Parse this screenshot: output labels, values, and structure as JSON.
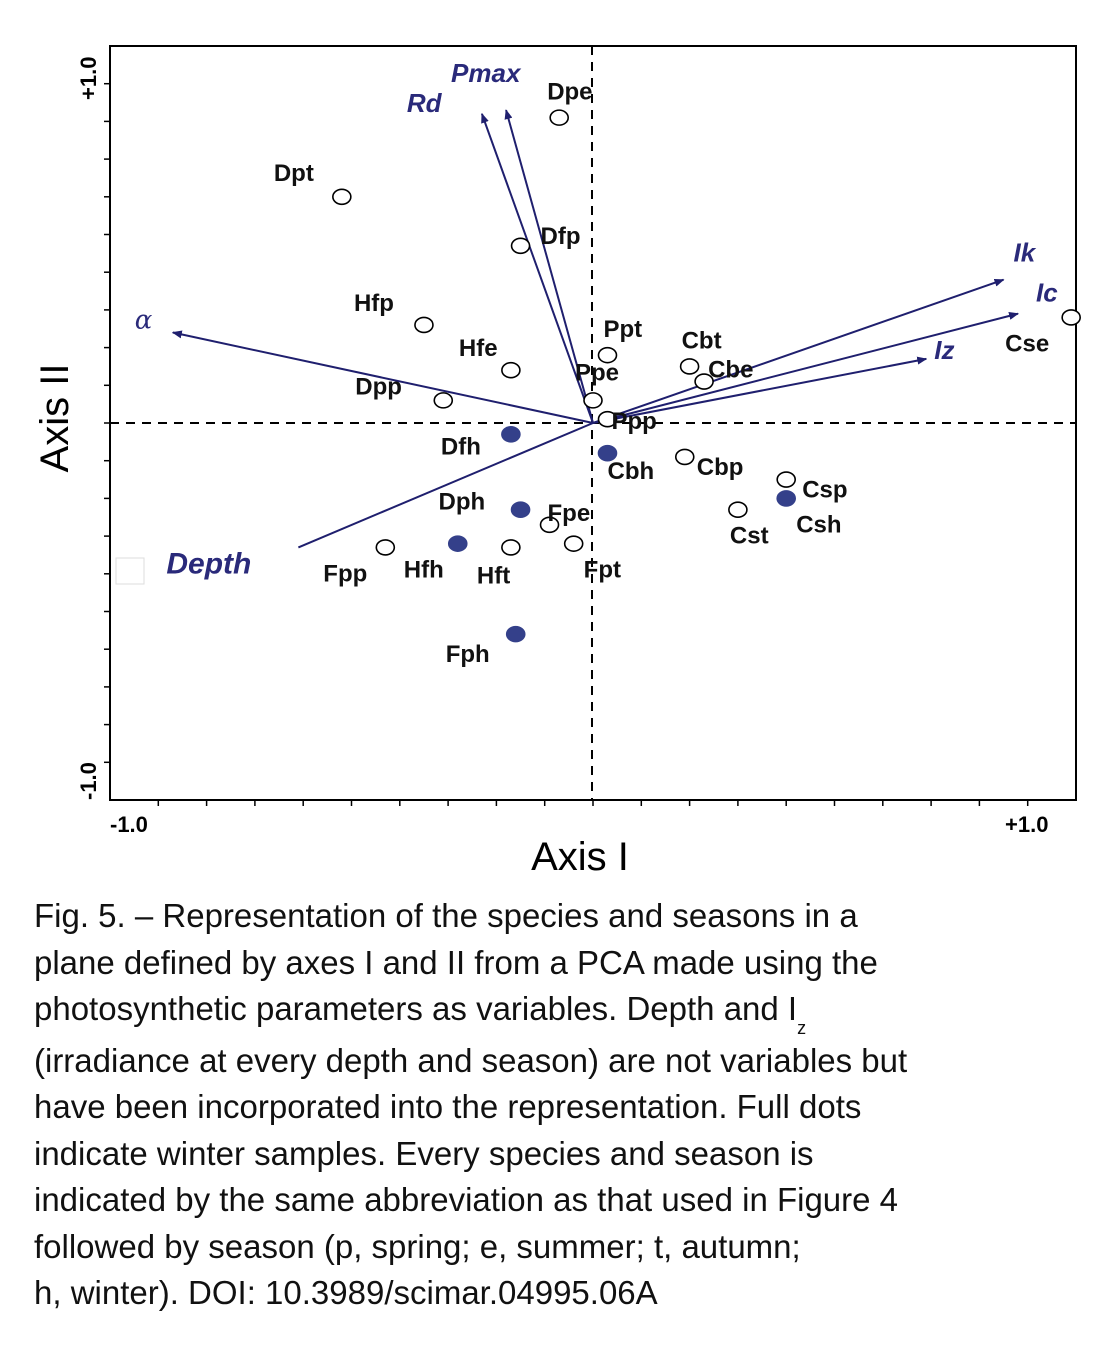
{
  "chart_data": {
    "type": "scatter",
    "xlabel": "Axis I",
    "ylabel": "Axis II",
    "xlim": [
      -1.0,
      1.0
    ],
    "ylim": [
      -1.0,
      1.0
    ],
    "tick_labels": {
      "x_min": "-1.0",
      "x_max": "+1.0",
      "y_min": "-1.0",
      "y_max": "+1.0"
    },
    "grid": false,
    "reference_lines": "dashed lines at x=0 and y=0",
    "points": [
      {
        "label": "Dpe",
        "x": -0.07,
        "y": 0.81,
        "winter": false
      },
      {
        "label": "Dpt",
        "x": -0.52,
        "y": 0.6,
        "winter": false
      },
      {
        "label": "Dfp",
        "x": -0.15,
        "y": 0.47,
        "winter": false
      },
      {
        "label": "Hfp",
        "x": -0.35,
        "y": 0.26,
        "winter": false
      },
      {
        "label": "Hfe",
        "x": -0.17,
        "y": 0.14,
        "winter": false
      },
      {
        "label": "Dpp",
        "x": -0.31,
        "y": 0.06,
        "winter": false
      },
      {
        "label": "Ppt",
        "x": 0.03,
        "y": 0.18,
        "winter": false
      },
      {
        "label": "Cbt",
        "x": 0.2,
        "y": 0.15,
        "winter": false
      },
      {
        "label": "Cbe",
        "x": 0.23,
        "y": 0.11,
        "winter": false
      },
      {
        "label": "Ppe",
        "x": 0.0,
        "y": 0.06,
        "winter": false
      },
      {
        "label": "Ppp",
        "x": 0.03,
        "y": 0.01,
        "winter": false
      },
      {
        "label": "Cse",
        "x": 0.99,
        "y": 0.28,
        "winter": false
      },
      {
        "label": "Dfh",
        "x": -0.17,
        "y": -0.03,
        "winter": true
      },
      {
        "label": "Cbh",
        "x": 0.03,
        "y": -0.08,
        "winter": true
      },
      {
        "label": "Cbp",
        "x": 0.19,
        "y": -0.09,
        "winter": false
      },
      {
        "label": "Csp",
        "x": 0.4,
        "y": -0.15,
        "winter": false
      },
      {
        "label": "Csh",
        "x": 0.4,
        "y": -0.2,
        "winter": true
      },
      {
        "label": "Cst",
        "x": 0.3,
        "y": -0.23,
        "winter": false
      },
      {
        "label": "Dph",
        "x": -0.15,
        "y": -0.23,
        "winter": true
      },
      {
        "label": "Fpe",
        "x": -0.09,
        "y": -0.27,
        "winter": false
      },
      {
        "label": "Fpp",
        "x": -0.43,
        "y": -0.33,
        "winter": false
      },
      {
        "label": "Hfh",
        "x": -0.28,
        "y": -0.32,
        "winter": true
      },
      {
        "label": "Hft",
        "x": -0.17,
        "y": -0.33,
        "winter": false
      },
      {
        "label": "Fpt",
        "x": -0.04,
        "y": -0.32,
        "winter": false
      },
      {
        "label": "Fph",
        "x": -0.16,
        "y": -0.56,
        "winter": true
      }
    ],
    "vectors": [
      {
        "label": "Pmax",
        "x": -0.18,
        "y": 0.83
      },
      {
        "label": "Rd",
        "x": -0.23,
        "y": 0.82
      },
      {
        "label": "Ik",
        "x": 0.85,
        "y": 0.38
      },
      {
        "label": "Ic",
        "x": 0.88,
        "y": 0.29
      },
      {
        "label": "Iz",
        "x": 0.69,
        "y": 0.17
      },
      {
        "label": "α",
        "x": -0.87,
        "y": 0.24
      },
      {
        "label": "Depth",
        "x": -0.61,
        "y": -0.33
      }
    ],
    "colors": {
      "vector": "#1f1f6e",
      "label": "#2a2a7a",
      "winter_fill": "#34408a"
    }
  },
  "caption": {
    "lines": [
      "Fig. 5. – Representation of the species and seasons in a",
      "plane defined by axes I and II from a PCA made using the",
      "photosynthetic parameters as variables. Depth and I",
      "(irradiance at every depth and season) are not variables but",
      "have been incorporated into the representation. Full dots",
      "indicate winter samples. Every species and season is",
      "indicated by the same abbreviation as that used in Figure 4",
      "followed by season (p, spring; e, summer; t, autumn;",
      "h, winter). DOI: 10.3989/scimar.04995.06A"
    ],
    "subscript_z": "z"
  }
}
